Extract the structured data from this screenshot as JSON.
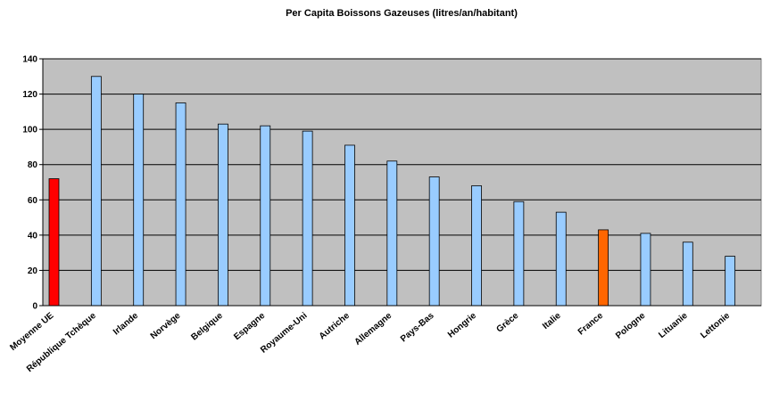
{
  "chart_data": {
    "type": "bar",
    "title": "Per Capita Boissons Gazeuses (litres/an/habitant)",
    "categories": [
      "Moyenne UE",
      "République Tchèque",
      "Irlande",
      "Norvège",
      "Belgique",
      "Espagne",
      "Royaume-Uni",
      "Autriche",
      "Allemagne",
      "Pays-Bas",
      "Hongrie",
      "Grèce",
      "Italie",
      "France",
      "Pologne",
      "Lituanie",
      "Lettonie"
    ],
    "values": [
      72,
      130,
      120,
      115,
      103,
      102,
      99,
      91,
      82,
      73,
      68,
      59,
      53,
      43,
      41,
      36,
      28
    ],
    "colors": [
      "#ff0000",
      "#99ccff",
      "#99ccff",
      "#99ccff",
      "#99ccff",
      "#99ccff",
      "#99ccff",
      "#99ccff",
      "#99ccff",
      "#99ccff",
      "#99ccff",
      "#99ccff",
      "#99ccff",
      "#ff6600",
      "#99ccff",
      "#99ccff",
      "#99ccff"
    ],
    "ylim": [
      0,
      140
    ],
    "yticks": [
      0,
      20,
      40,
      60,
      80,
      100,
      120,
      140
    ],
    "grid": true
  }
}
